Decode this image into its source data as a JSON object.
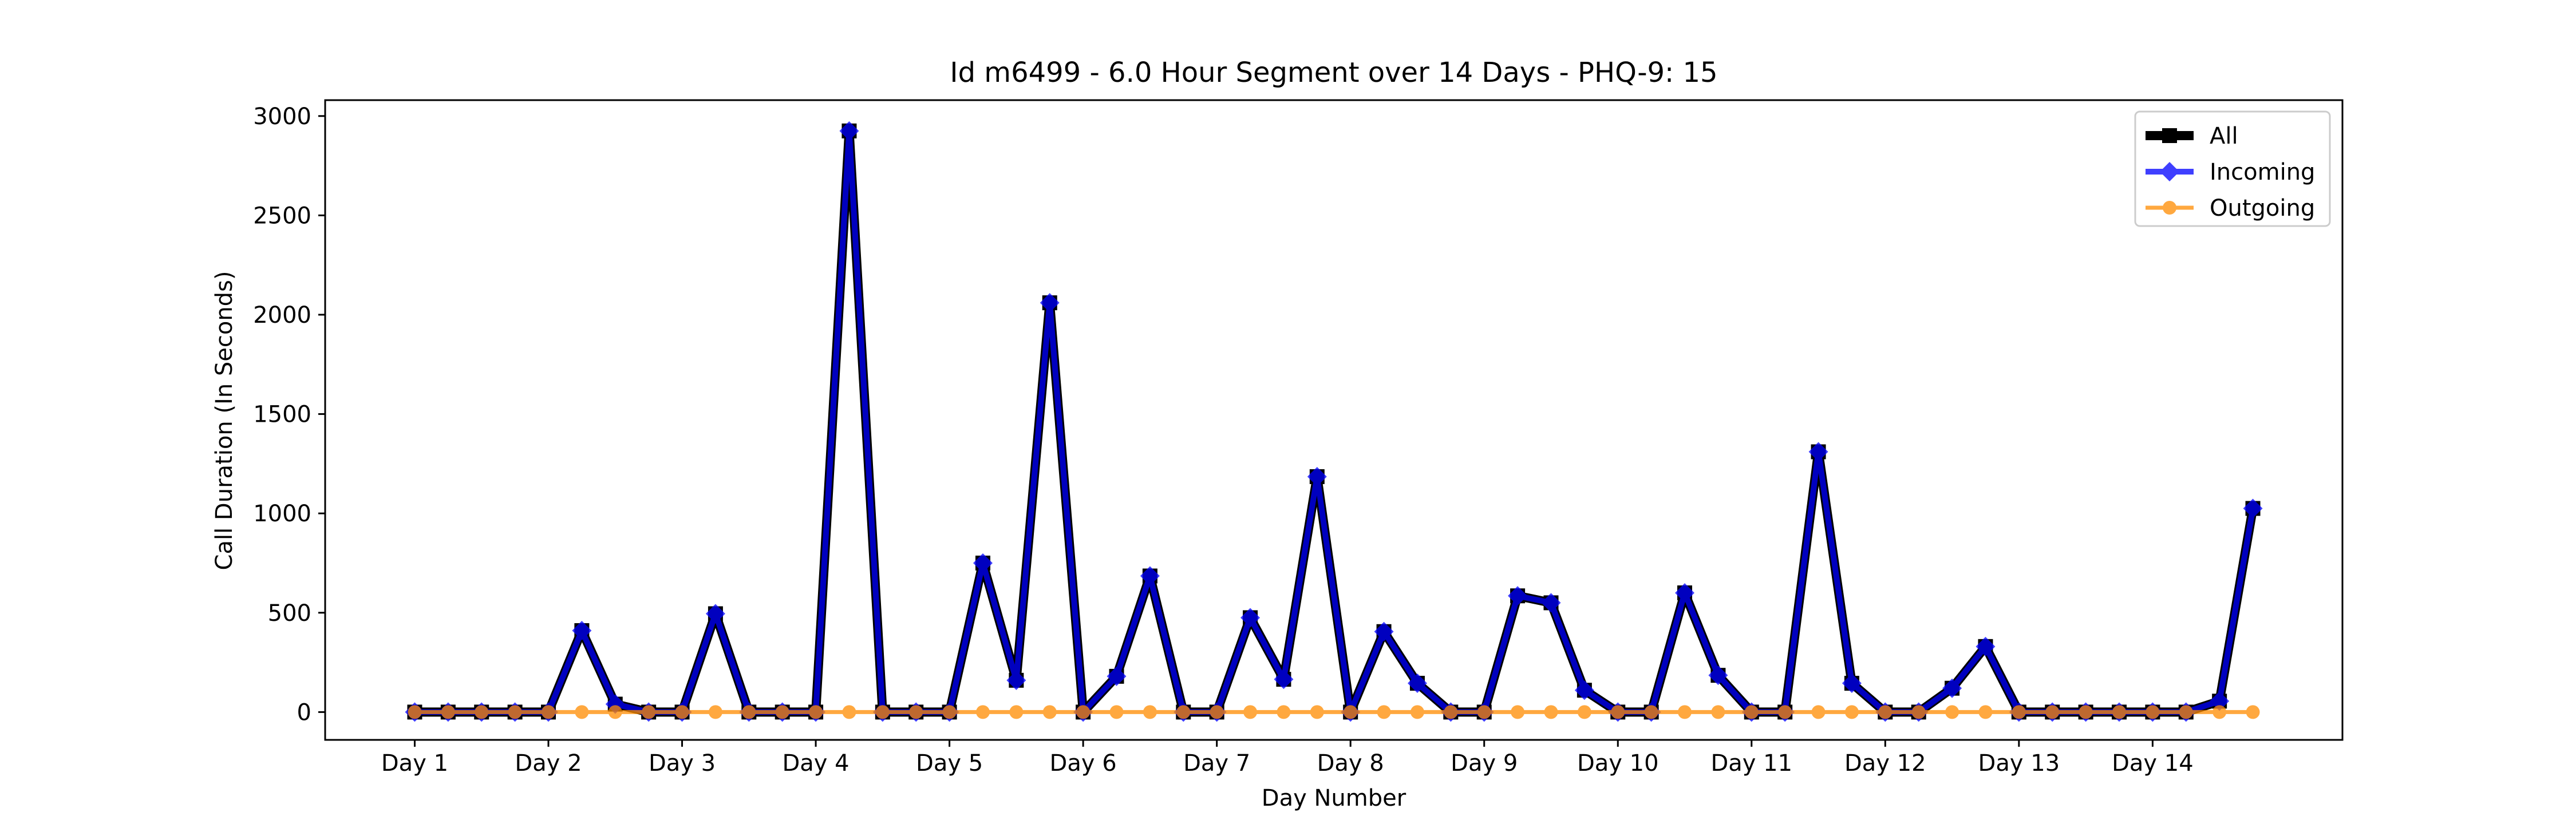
{
  "chart_data": {
    "type": "line",
    "title": "Id m6499 - 6.0 Hour Segment over 14 Days - PHQ-9: 15",
    "xlabel": "Day Number",
    "ylabel": "Call Duration (In Seconds)",
    "x": [
      1,
      1.25,
      1.5,
      1.75,
      2,
      2.25,
      2.5,
      2.75,
      3,
      3.25,
      3.5,
      3.75,
      4,
      4.25,
      4.5,
      4.75,
      5,
      5.25,
      5.5,
      5.75,
      6,
      6.25,
      6.5,
      6.75,
      7,
      7.25,
      7.5,
      7.75,
      8,
      8.25,
      8.5,
      8.75,
      9,
      9.25,
      9.5,
      9.75,
      10,
      10.25,
      10.5,
      10.75,
      11,
      11.25,
      11.5,
      11.75,
      12,
      12.25,
      12.5,
      12.75,
      13,
      13.25,
      13.5,
      13.75,
      14,
      14.25,
      14.5,
      14.75
    ],
    "xlim": [
      0.33,
      15.42
    ],
    "ylim": [
      -140,
      3080
    ],
    "x_ticks": [
      {
        "value": 1,
        "label": "Day 1"
      },
      {
        "value": 2,
        "label": "Day 2"
      },
      {
        "value": 3,
        "label": "Day 3"
      },
      {
        "value": 4,
        "label": "Day 4"
      },
      {
        "value": 5,
        "label": "Day 5"
      },
      {
        "value": 6,
        "label": "Day 6"
      },
      {
        "value": 7,
        "label": "Day 7"
      },
      {
        "value": 8,
        "label": "Day 8"
      },
      {
        "value": 9,
        "label": "Day 9"
      },
      {
        "value": 10,
        "label": "Day 10"
      },
      {
        "value": 11,
        "label": "Day 11"
      },
      {
        "value": 12,
        "label": "Day 12"
      },
      {
        "value": 13,
        "label": "Day 13"
      },
      {
        "value": 14,
        "label": "Day 14"
      }
    ],
    "y_ticks": [
      {
        "value": 0,
        "label": "0"
      },
      {
        "value": 500,
        "label": "500"
      },
      {
        "value": 1000,
        "label": "1000"
      },
      {
        "value": 1500,
        "label": "1500"
      },
      {
        "value": 2000,
        "label": "2000"
      },
      {
        "value": 2500,
        "label": "2500"
      },
      {
        "value": 3000,
        "label": "3000"
      }
    ],
    "grid": false,
    "legend_position": "top-right",
    "series": [
      {
        "name": "All",
        "color": "#000000",
        "marker": "square",
        "values": [
          0,
          0,
          0,
          0,
          0,
          410,
          40,
          0,
          0,
          495,
          0,
          0,
          0,
          2925,
          0,
          0,
          0,
          750,
          160,
          2060,
          0,
          180,
          685,
          0,
          0,
          475,
          165,
          1185,
          0,
          405,
          145,
          0,
          0,
          585,
          550,
          110,
          0,
          0,
          600,
          185,
          0,
          0,
          1310,
          145,
          0,
          0,
          120,
          330,
          0,
          0,
          0,
          0,
          0,
          0,
          55,
          1025
        ]
      },
      {
        "name": "Incoming",
        "color": "#0000ff",
        "marker": "diamond",
        "values": [
          0,
          0,
          0,
          0,
          0,
          410,
          40,
          0,
          0,
          495,
          0,
          0,
          0,
          2925,
          0,
          0,
          0,
          750,
          160,
          2060,
          0,
          180,
          685,
          0,
          0,
          475,
          165,
          1185,
          0,
          405,
          145,
          0,
          0,
          585,
          550,
          110,
          0,
          0,
          600,
          185,
          0,
          0,
          1310,
          145,
          0,
          0,
          120,
          330,
          0,
          0,
          0,
          0,
          0,
          0,
          55,
          1025
        ]
      },
      {
        "name": "Outgoing",
        "color": "#ff8c00",
        "marker": "circle",
        "values": [
          0,
          0,
          0,
          0,
          0,
          0,
          0,
          0,
          0,
          0,
          0,
          0,
          0,
          0,
          0,
          0,
          0,
          0,
          0,
          0,
          0,
          0,
          0,
          0,
          0,
          0,
          0,
          0,
          0,
          0,
          0,
          0,
          0,
          0,
          0,
          0,
          0,
          0,
          0,
          0,
          0,
          0,
          0,
          0,
          0,
          0,
          0,
          0,
          0,
          0,
          0,
          0,
          0,
          0,
          0,
          0
        ]
      }
    ]
  }
}
